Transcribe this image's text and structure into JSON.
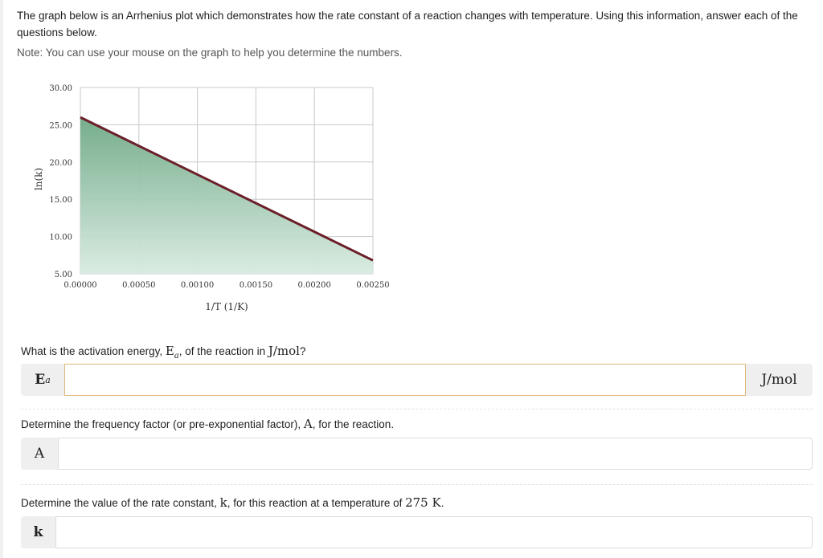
{
  "intro_text": "The graph below is an Arrhenius plot which demonstrates how the rate constant of a reaction changes with temperature. Using this information, answer each of the questions below.",
  "note_text": "Note: You can use your mouse on the graph to help you determine the numbers.",
  "chart_data": {
    "type": "area",
    "xlabel": "1/T (1/K)",
    "ylabel": "ln(k)",
    "xlim": [
      0.0,
      0.0025
    ],
    "ylim": [
      5.0,
      30.0
    ],
    "x_ticks": [
      "0.00000",
      "0.00050",
      "0.00100",
      "0.00150",
      "0.00200",
      "0.00250"
    ],
    "y_ticks": [
      "30.00",
      "25.00",
      "20.00",
      "15.00",
      "10.00",
      "5.00"
    ],
    "series": [
      {
        "x": [
          0.0,
          0.0025
        ],
        "y": [
          26.0,
          6.8
        ]
      }
    ],
    "grid": true,
    "colors": {
      "line": "#6b1f2a",
      "fill_top": "#6fa987",
      "fill_bottom": "#d8ebe0",
      "grid": "#c8c8c8"
    }
  },
  "q1": {
    "prefix": "What is the activation energy, ",
    "sym_main": "E",
    "sym_sub": "a",
    "mid": ", of the reaction in ",
    "unit": "J/mol",
    "suffix": "?",
    "label": "E",
    "label_sub": "a",
    "value": "",
    "unit_label": "J/mol"
  },
  "q2": {
    "prefix": "Determine the frequency factor (or pre-exponential factor), ",
    "sym": "A",
    "suffix": ", for the reaction.",
    "label": "A",
    "value": ""
  },
  "q3": {
    "prefix": "Determine the value of the rate constant, ",
    "sym": "k",
    "mid": ", for this reaction at a temperature of ",
    "temp": "275 K",
    "suffix": ".",
    "label": "k",
    "value": ""
  }
}
